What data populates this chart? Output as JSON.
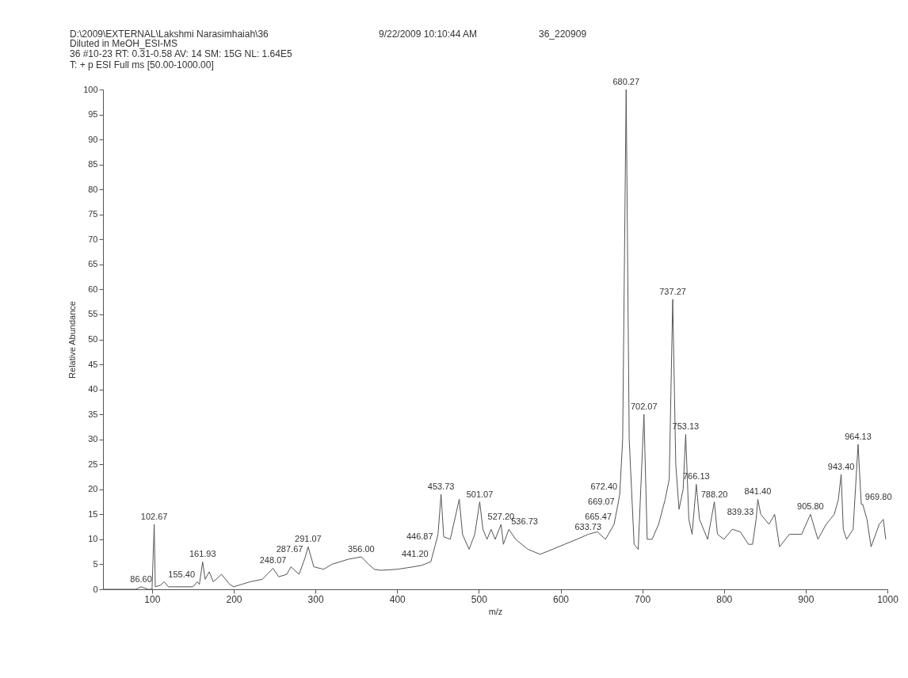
{
  "chart_data": {
    "type": "line",
    "title": "D:\\2009\\EXTERNAL\\Lakshmi Narasimhaiah\\36",
    "subtitle": "Diluted in  MeOH_ESI-MS",
    "xlabel": "m/z",
    "ylabel": "Relative Abundance",
    "x": [
      40,
      60,
      80,
      86.6,
      95,
      100,
      102.67,
      104,
      110,
      115,
      120,
      135,
      150,
      155.4,
      158,
      161.93,
      165,
      170,
      175,
      185,
      195,
      200,
      210,
      220,
      235,
      248.07,
      255,
      265,
      270,
      280,
      287.67,
      291.07,
      298,
      310,
      320,
      330,
      340,
      356,
      365,
      372,
      380,
      400,
      420,
      430,
      441.2,
      446.87,
      450,
      453.73,
      457,
      465,
      476,
      480,
      488,
      495,
      501.07,
      505,
      510,
      515,
      520,
      527.2,
      530,
      536.73,
      545,
      560,
      575,
      590,
      605,
      620,
      633.73,
      645,
      655,
      665.47,
      669.07,
      672.4,
      676,
      680.27,
      684,
      690,
      695,
      702.07,
      706,
      712,
      720,
      728,
      733,
      737.27,
      741,
      745,
      750,
      753.13,
      757,
      761,
      766.13,
      770,
      775,
      780,
      788.2,
      792,
      800,
      810,
      820,
      830,
      835,
      839.33,
      841.4,
      845,
      855,
      862,
      868,
      880,
      895,
      905.8,
      915,
      925,
      935,
      940,
      943.4,
      946,
      950,
      958,
      964.13,
      968,
      969.8,
      975,
      980,
      990,
      995,
      998
    ],
    "series": [
      {
        "color": "#555555",
        "values": [
          0,
          0,
          0,
          0.5,
          0,
          0,
          13,
          0.5,
          0.8,
          1.5,
          0.5,
          0.5,
          0.5,
          1.5,
          1,
          5.5,
          2,
          3.5,
          1.5,
          3,
          1,
          0.5,
          1,
          1.5,
          2,
          4.2,
          2.5,
          3,
          4.5,
          3,
          6.5,
          8.5,
          4.5,
          4,
          5,
          5.5,
          6,
          6.5,
          5,
          4,
          3.8,
          4,
          4.5,
          4.8,
          5.5,
          9,
          11,
          19,
          10.5,
          10,
          18,
          11,
          8,
          11,
          17.5,
          12,
          10,
          12,
          10,
          13,
          9,
          12,
          10,
          8,
          7,
          8,
          9,
          10,
          11,
          11.5,
          10,
          13,
          16,
          19,
          30,
          100,
          30,
          9,
          8,
          35,
          10,
          10,
          13,
          18,
          22,
          58,
          25,
          16,
          20,
          31,
          14,
          11,
          21,
          14,
          12,
          10,
          17.5,
          11,
          10,
          12,
          11.5,
          9,
          9,
          14,
          18,
          15,
          13,
          15,
          8.5,
          11,
          11,
          15,
          10,
          13,
          15,
          18,
          23,
          12,
          10,
          12,
          29,
          17,
          17,
          14,
          8.5,
          13,
          14,
          10
        ]
      }
    ],
    "xlim": [
      40,
      1000
    ],
    "xticks": [
      100,
      200,
      300,
      400,
      500,
      600,
      700,
      800,
      900,
      {
        "value": 1000,
        "label": "1000"
      }
    ],
    "ylim": [
      0,
      100
    ],
    "yticks": [
      0,
      5,
      10,
      15,
      20,
      25,
      30,
      35,
      40,
      45,
      50,
      55,
      60,
      65,
      70,
      75,
      80,
      85,
      90,
      95,
      100
    ],
    "grid": false,
    "marker": "none",
    "line_style": "solid",
    "annotations": [
      "9/22/2009 10:10:44 AM",
      "36_220909",
      "36 #10-23  RT: 0.31-0.58  AV: 14  SM: 15G  NL: 1.64E5",
      "T: + p ESI Full ms [50.00-1000.00]",
      {
        "text": "86.60",
        "x": 86.6,
        "y": 0.5
      },
      {
        "text": "102.67",
        "x": 102.67,
        "y": 13
      },
      {
        "text": "155.40",
        "x": 155.4,
        "y": 1.5
      },
      {
        "text": "161.93",
        "x": 161.93,
        "y": 5.5
      },
      {
        "text": "248.07",
        "x": 248.07,
        "y": 4.2
      },
      {
        "text": "287.67",
        "x": 287.67,
        "y": 6.5
      },
      {
        "text": "291.07",
        "x": 291.07,
        "y": 8.5
      },
      {
        "text": "356.00",
        "x": 356,
        "y": 6.5
      },
      {
        "text": "441.20",
        "x": 441.2,
        "y": 5.5
      },
      {
        "text": "446.87",
        "x": 446.87,
        "y": 9
      },
      {
        "text": "453.73",
        "x": 453.73,
        "y": 19
      },
      {
        "text": "501.07",
        "x": 501.07,
        "y": 17.5
      },
      {
        "text": "527.20",
        "x": 527.2,
        "y": 13
      },
      {
        "text": "536.73",
        "x": 536.73,
        "y": 12
      },
      {
        "text": "633.73",
        "x": 633.73,
        "y": 11
      },
      {
        "text": "665.47",
        "x": 665.47,
        "y": 13
      },
      {
        "text": "669.07",
        "x": 669.07,
        "y": 16
      },
      {
        "text": "672.40",
        "x": 672.4,
        "y": 19
      },
      {
        "text": "680.27",
        "x": 680.27,
        "y": 100
      },
      {
        "text": "702.07",
        "x": 702.07,
        "y": 35
      },
      {
        "text": "737.27",
        "x": 737.27,
        "y": 58
      },
      {
        "text": "753.13",
        "x": 753.13,
        "y": 31
      },
      {
        "text": "766.13",
        "x": 766.13,
        "y": 21
      },
      {
        "text": "788.20",
        "x": 788.2,
        "y": 17.5
      },
      {
        "text": "839.33",
        "x": 839.33,
        "y": 14
      },
      {
        "text": "841.40",
        "x": 841.4,
        "y": 18
      },
      {
        "text": "905.80",
        "x": 905.8,
        "y": 15
      },
      {
        "text": "943.40",
        "x": 943.4,
        "y": 23
      },
      {
        "text": "964.13",
        "x": 964.13,
        "y": 29
      },
      {
        "text": "969.80",
        "x": 969.8,
        "y": 17
      }
    ]
  }
}
